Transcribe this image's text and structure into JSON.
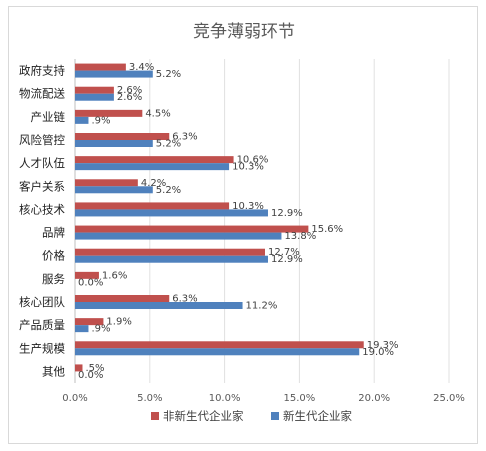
{
  "chart_data": {
    "type": "bar",
    "orientation": "horizontal",
    "title": "竞争薄弱环节",
    "categories": [
      "政府支持",
      "物流配送",
      "产业链",
      "风险管控",
      "人才队伍",
      "客户关系",
      "核心技术",
      "品牌",
      "价格",
      "服务",
      "核心团队",
      "产品质量",
      "生产规模",
      "其他"
    ],
    "series": [
      {
        "name": "非新生代企业家",
        "color": "#c0504d",
        "values": [
          3.4,
          2.6,
          4.5,
          6.3,
          10.6,
          4.2,
          10.3,
          15.6,
          12.7,
          1.6,
          6.3,
          1.9,
          19.3,
          0.5
        ],
        "labels": [
          "3.4%",
          "2.6%",
          "4.5%",
          "6.3%",
          "10.6%",
          "4.2%",
          "10.3%",
          "15.6%",
          "12.7%",
          "1.6%",
          "6.3%",
          "1.9%",
          "19.3%",
          ".5%"
        ]
      },
      {
        "name": "新生代企业家",
        "color": "#4f81bd",
        "values": [
          5.2,
          2.6,
          0.9,
          5.2,
          10.3,
          5.2,
          12.9,
          13.8,
          12.9,
          0.0,
          11.2,
          0.9,
          19.0,
          0.0
        ],
        "labels": [
          "5.2%",
          "2.6%",
          ".9%",
          "5.2%",
          "10.3%",
          "5.2%",
          "12.9%",
          "13.8%",
          "12.9%",
          "0.0%",
          "11.2%",
          ".9%",
          "19.0%",
          "0.0%"
        ]
      }
    ],
    "xlim": [
      0,
      25
    ],
    "xticks": [
      "0.0%",
      "5.0%",
      "10.0%",
      "15.0%",
      "20.0%",
      "25.0%"
    ],
    "grid": true,
    "legend_position": "bottom"
  }
}
